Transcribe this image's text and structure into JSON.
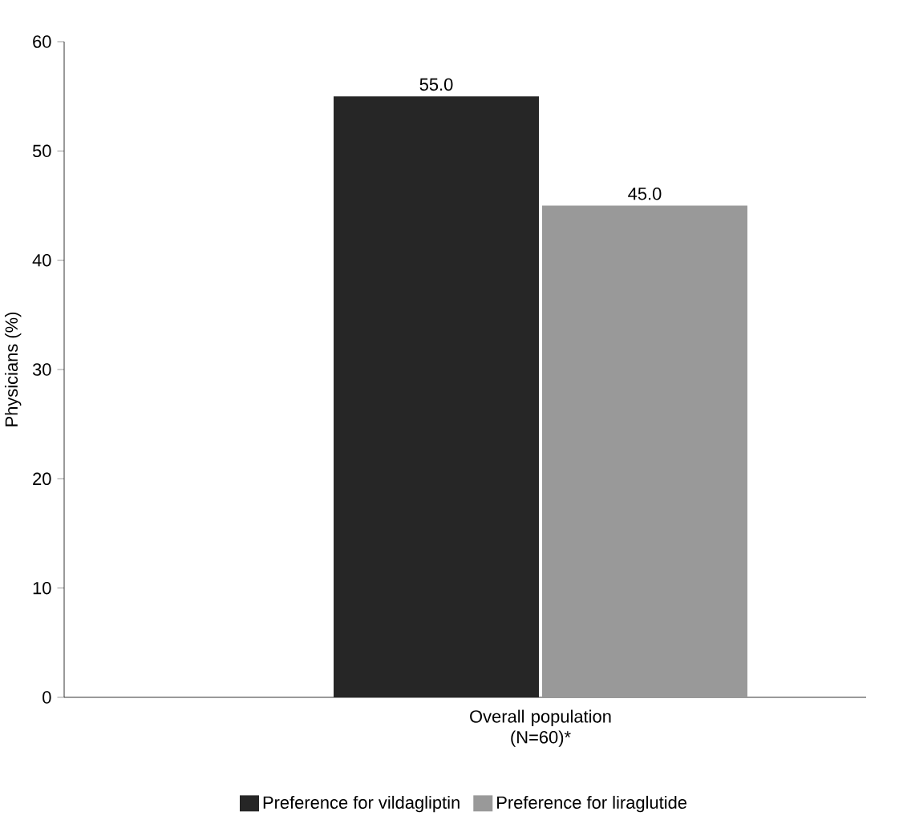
{
  "chart_data": {
    "type": "bar",
    "ylabel": "Physicians (%)",
    "categories": [
      "Overall population (N=60)*"
    ],
    "series": [
      {
        "name": "Preference for vildagliptin",
        "color": "#262626",
        "values": [
          55.0
        ],
        "value_labels": [
          "55.0"
        ]
      },
      {
        "name": "Preference for liraglutide",
        "color": "#999999",
        "values": [
          45.0
        ],
        "value_labels": [
          "45.0"
        ]
      }
    ],
    "ylim": [
      0,
      60
    ],
    "yticks": [
      0,
      10,
      20,
      30,
      40,
      50,
      60
    ],
    "legend": "bottom",
    "grid": false
  }
}
